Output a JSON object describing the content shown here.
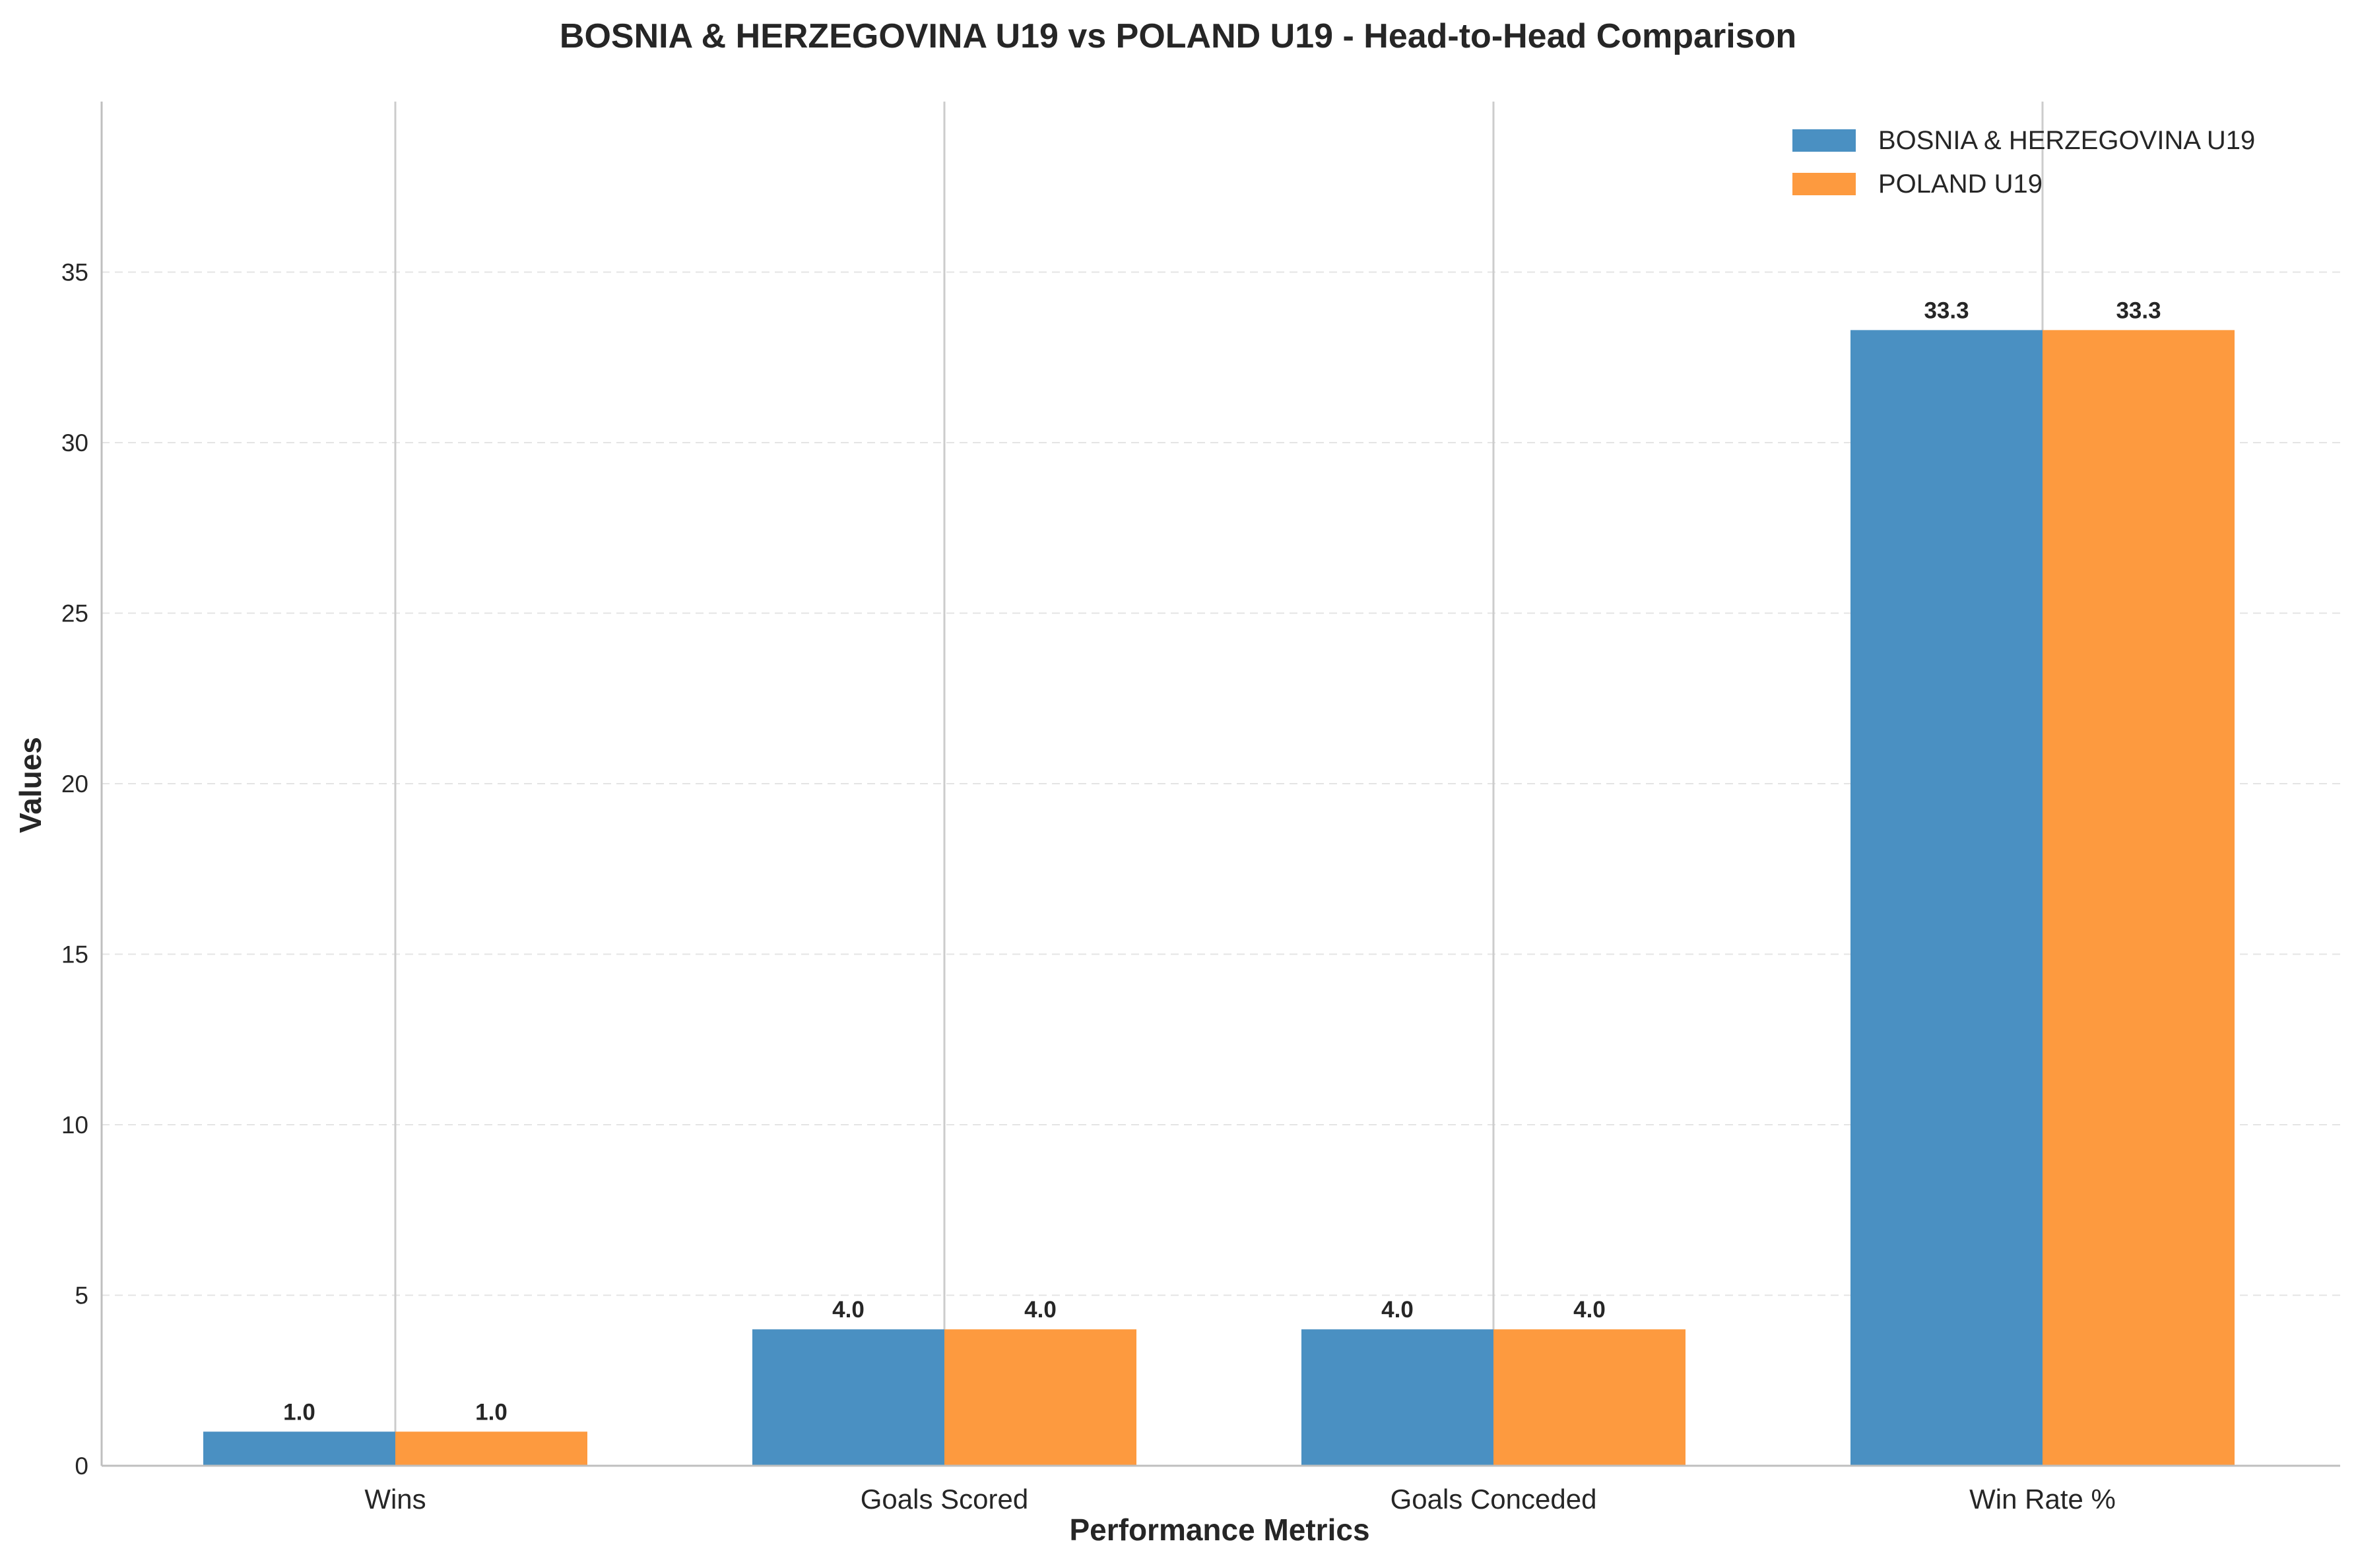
{
  "chart_data": {
    "type": "bar",
    "title": "BOSNIA & HERZEGOVINA U19 vs POLAND U19 - Head-to-Head Comparison",
    "xlabel": "Performance Metrics",
    "ylabel": "Values",
    "categories": [
      "Wins",
      "Goals Scored",
      "Goals Conceded",
      "Win Rate %"
    ],
    "series": [
      {
        "name": "BOSNIA & HERZEGOVINA U19",
        "values": [
          1.0,
          4.0,
          4.0,
          33.3
        ],
        "color": "#4a90c2",
        "labels": [
          "1.0",
          "4.0",
          "4.0",
          "33.3"
        ]
      },
      {
        "name": "POLAND U19",
        "values": [
          1.0,
          4.0,
          4.0,
          33.3
        ],
        "color": "#fd9a3f",
        "labels": [
          "1.0",
          "4.0",
          "4.0",
          "33.3"
        ]
      }
    ],
    "ylim": [
      0,
      40
    ],
    "yticks": [
      0,
      5,
      10,
      15,
      20,
      25,
      30,
      35
    ],
    "ytick_labels": [
      "0",
      "5",
      "10",
      "15",
      "20",
      "25",
      "30",
      "35"
    ],
    "grid": true,
    "legend_position": "top-right"
  }
}
